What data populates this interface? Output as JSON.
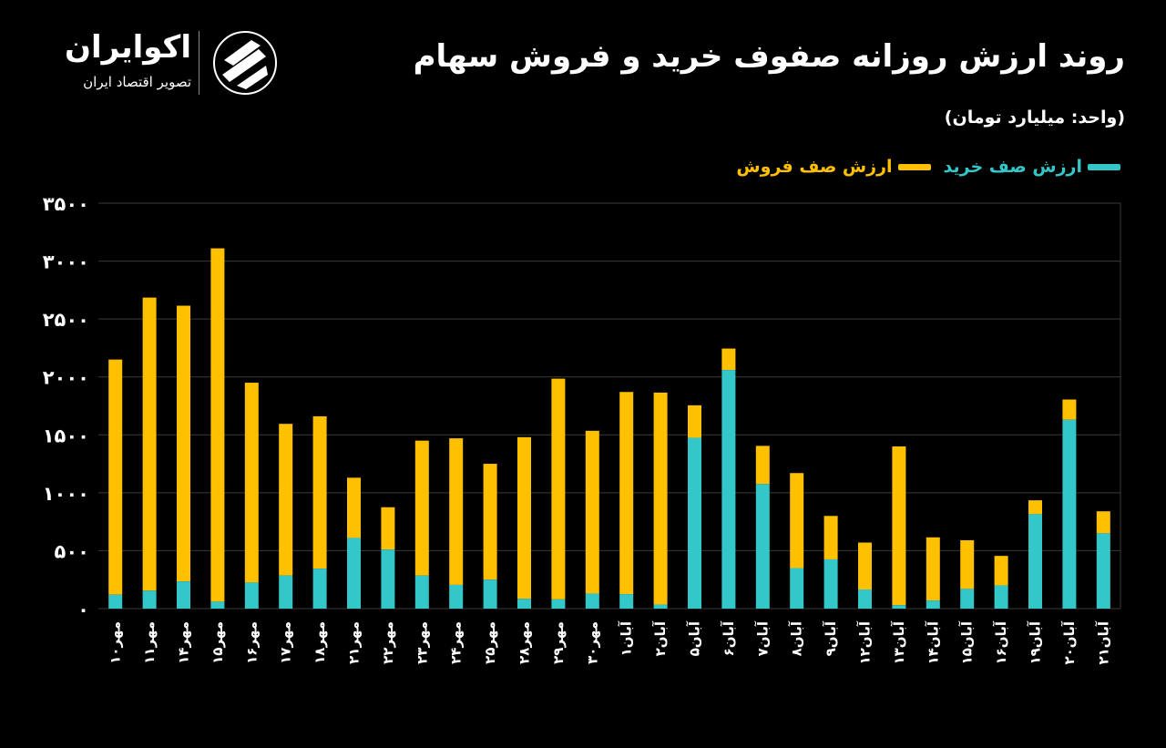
{
  "header": {
    "title": "روند ارزش روزانه صفوف خرید و فروش سهام",
    "unit": "(واحد: میلیارد تومان)"
  },
  "brand": {
    "name": "اکوایران",
    "tagline": "تصویر اقتصاد ایران",
    "icon": "ecoiran-logo-icon"
  },
  "colors": {
    "buy": "#34c7c9",
    "sell": "#ffc000",
    "grid": "#3a3a3a",
    "background": "#000000"
  },
  "chart_data": {
    "type": "bar",
    "stacked": true,
    "categories": [
      "مهر۱۰",
      "مهر۱۱",
      "مهر۱۴",
      "مهر۱۵",
      "مهر۱۶",
      "مهر۱۷",
      "مهر۱۸",
      "مهر۲۱",
      "مهر۲۲",
      "مهر۲۳",
      "مهر۲۴",
      "مهر۲۵",
      "مهر۲۸",
      "مهر۲۹",
      "مهر۳۰",
      "آبان۱",
      "آبان۲",
      "آبان۵",
      "آبان۶",
      "آبان۷",
      "آبان۸",
      "آبان۹",
      "آبان۱۲",
      "آبان۱۳",
      "آبان۱۴",
      "آبان۱۵",
      "آبان۱۶",
      "آبان۱۹",
      "آبان۲۰",
      "آبان۲۱"
    ],
    "series": [
      {
        "name": "ارزش صف خرید",
        "values": [
          120,
          155,
          235,
          60,
          225,
          285,
          345,
          610,
          510,
          285,
          205,
          250,
          85,
          80,
          130,
          125,
          35,
          1475,
          2060,
          1075,
          350,
          425,
          165,
          30,
          70,
          170,
          200,
          815,
          1630,
          650
        ]
      },
      {
        "name": "ارزش صف فروش",
        "values": [
          2030,
          2530,
          2380,
          3050,
          1725,
          1310,
          1315,
          520,
          365,
          1165,
          1265,
          1000,
          1395,
          1905,
          1405,
          1745,
          1830,
          280,
          185,
          330,
          820,
          375,
          405,
          1370,
          545,
          420,
          255,
          120,
          175,
          190
        ]
      }
    ],
    "yticks": [
      "۳۵۰۰",
      "۳۰۰۰",
      "۲۵۰۰",
      "۲۰۰۰",
      "۱۵۰۰",
      "۱۰۰۰",
      "۵۰۰",
      "۰"
    ],
    "ylim": [
      0,
      3500
    ],
    "grid": true,
    "legend_position": "top-right"
  }
}
